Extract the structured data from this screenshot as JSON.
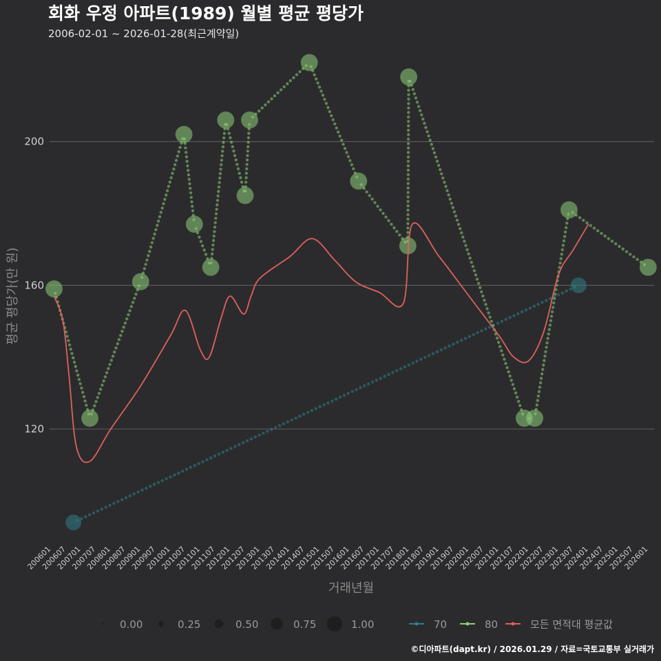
{
  "chart_data": {
    "type": "line",
    "title": "회화 우정 아파트(1989) 월별 평균 평당가",
    "subtitle": "2006-02-01 ~ 2026-01-28(최근계약일)",
    "xlabel": "거래년월",
    "ylabel": "평균 평당가(만 원)",
    "ylim": [
      88,
      226
    ],
    "xlim": [
      2005.95,
      2026.2
    ],
    "yticks": [
      120,
      160,
      200
    ],
    "xtick_labels": [
      "200601",
      "200607",
      "200701",
      "200707",
      "200801",
      "200807",
      "200901",
      "200907",
      "201001",
      "201007",
      "201101",
      "201107",
      "201201",
      "201207",
      "201301",
      "201307",
      "201401",
      "201407",
      "201501",
      "201507",
      "201601",
      "201607",
      "201701",
      "201707",
      "201801",
      "201807",
      "201901",
      "201907",
      "202001",
      "202007",
      "202101",
      "202107",
      "202201",
      "202207",
      "202301",
      "202307",
      "202401",
      "202407",
      "202501",
      "202507",
      "202601"
    ],
    "legend": {
      "size_label": "",
      "size_values": [
        "0.00",
        "0.25",
        "0.50",
        "0.75",
        "1.00"
      ],
      "series_label": ""
    },
    "series": [
      {
        "name": "70",
        "color": "#2f7f86",
        "line": "connected",
        "points": [
          {
            "x": 2006.75,
            "y": 94,
            "size": 0.7
          },
          {
            "x": 2023.67,
            "y": 160,
            "size": 0.7
          }
        ]
      },
      {
        "name": "80",
        "color": "#8fcf7a",
        "line": "dotted-interp",
        "points": [
          {
            "x": 2006.1,
            "y": 159,
            "size": 0.8
          },
          {
            "x": 2007.3,
            "y": 123,
            "size": 0.8
          },
          {
            "x": 2009.0,
            "y": 161,
            "size": 0.8
          },
          {
            "x": 2010.45,
            "y": 202,
            "size": 0.8
          },
          {
            "x": 2010.8,
            "y": 177,
            "size": 0.8
          },
          {
            "x": 2011.35,
            "y": 165,
            "size": 0.8
          },
          {
            "x": 2011.85,
            "y": 206,
            "size": 0.8
          },
          {
            "x": 2012.5,
            "y": 185,
            "size": 0.8
          },
          {
            "x": 2012.65,
            "y": 206,
            "size": 0.8
          },
          {
            "x": 2014.65,
            "y": 222,
            "size": 0.8
          },
          {
            "x": 2016.3,
            "y": 189,
            "size": 0.8
          },
          {
            "x": 2017.95,
            "y": 171,
            "size": 0.8
          },
          {
            "x": 2017.98,
            "y": 218,
            "size": 0.8
          },
          {
            "x": 2021.85,
            "y": 123,
            "size": 0.8
          },
          {
            "x": 2022.2,
            "y": 123,
            "size": 0.8
          },
          {
            "x": 2023.35,
            "y": 181,
            "size": 0.8
          },
          {
            "x": 2026.0,
            "y": 165,
            "size": 0.8
          }
        ]
      },
      {
        "name": "모든 면적대 평균값",
        "color": "#e0605e",
        "line": "smooth",
        "points": [
          {
            "x": 2006.1,
            "y": 157
          },
          {
            "x": 2006.4,
            "y": 150
          },
          {
            "x": 2006.6,
            "y": 135
          },
          {
            "x": 2006.85,
            "y": 115
          },
          {
            "x": 2007.3,
            "y": 111
          },
          {
            "x": 2008.0,
            "y": 120
          },
          {
            "x": 2009.0,
            "y": 132
          },
          {
            "x": 2010.0,
            "y": 146
          },
          {
            "x": 2010.5,
            "y": 153
          },
          {
            "x": 2011.0,
            "y": 142
          },
          {
            "x": 2011.3,
            "y": 140
          },
          {
            "x": 2011.7,
            "y": 151
          },
          {
            "x": 2012.0,
            "y": 157
          },
          {
            "x": 2012.45,
            "y": 152
          },
          {
            "x": 2012.7,
            "y": 157
          },
          {
            "x": 2013.0,
            "y": 162
          },
          {
            "x": 2014.0,
            "y": 168
          },
          {
            "x": 2014.75,
            "y": 173
          },
          {
            "x": 2015.5,
            "y": 167
          },
          {
            "x": 2016.2,
            "y": 161
          },
          {
            "x": 2017.0,
            "y": 158
          },
          {
            "x": 2017.8,
            "y": 155
          },
          {
            "x": 2018.1,
            "y": 177
          },
          {
            "x": 2019.0,
            "y": 168
          },
          {
            "x": 2020.0,
            "y": 157
          },
          {
            "x": 2021.0,
            "y": 146
          },
          {
            "x": 2021.5,
            "y": 140
          },
          {
            "x": 2022.0,
            "y": 139
          },
          {
            "x": 2022.5,
            "y": 147
          },
          {
            "x": 2023.0,
            "y": 163
          },
          {
            "x": 2023.5,
            "y": 170
          },
          {
            "x": 2024.0,
            "y": 177
          }
        ]
      }
    ]
  },
  "caption": "©디아파트(dapt.kr) / 2026.01.29 / 자료=국토교통부 실거래가"
}
